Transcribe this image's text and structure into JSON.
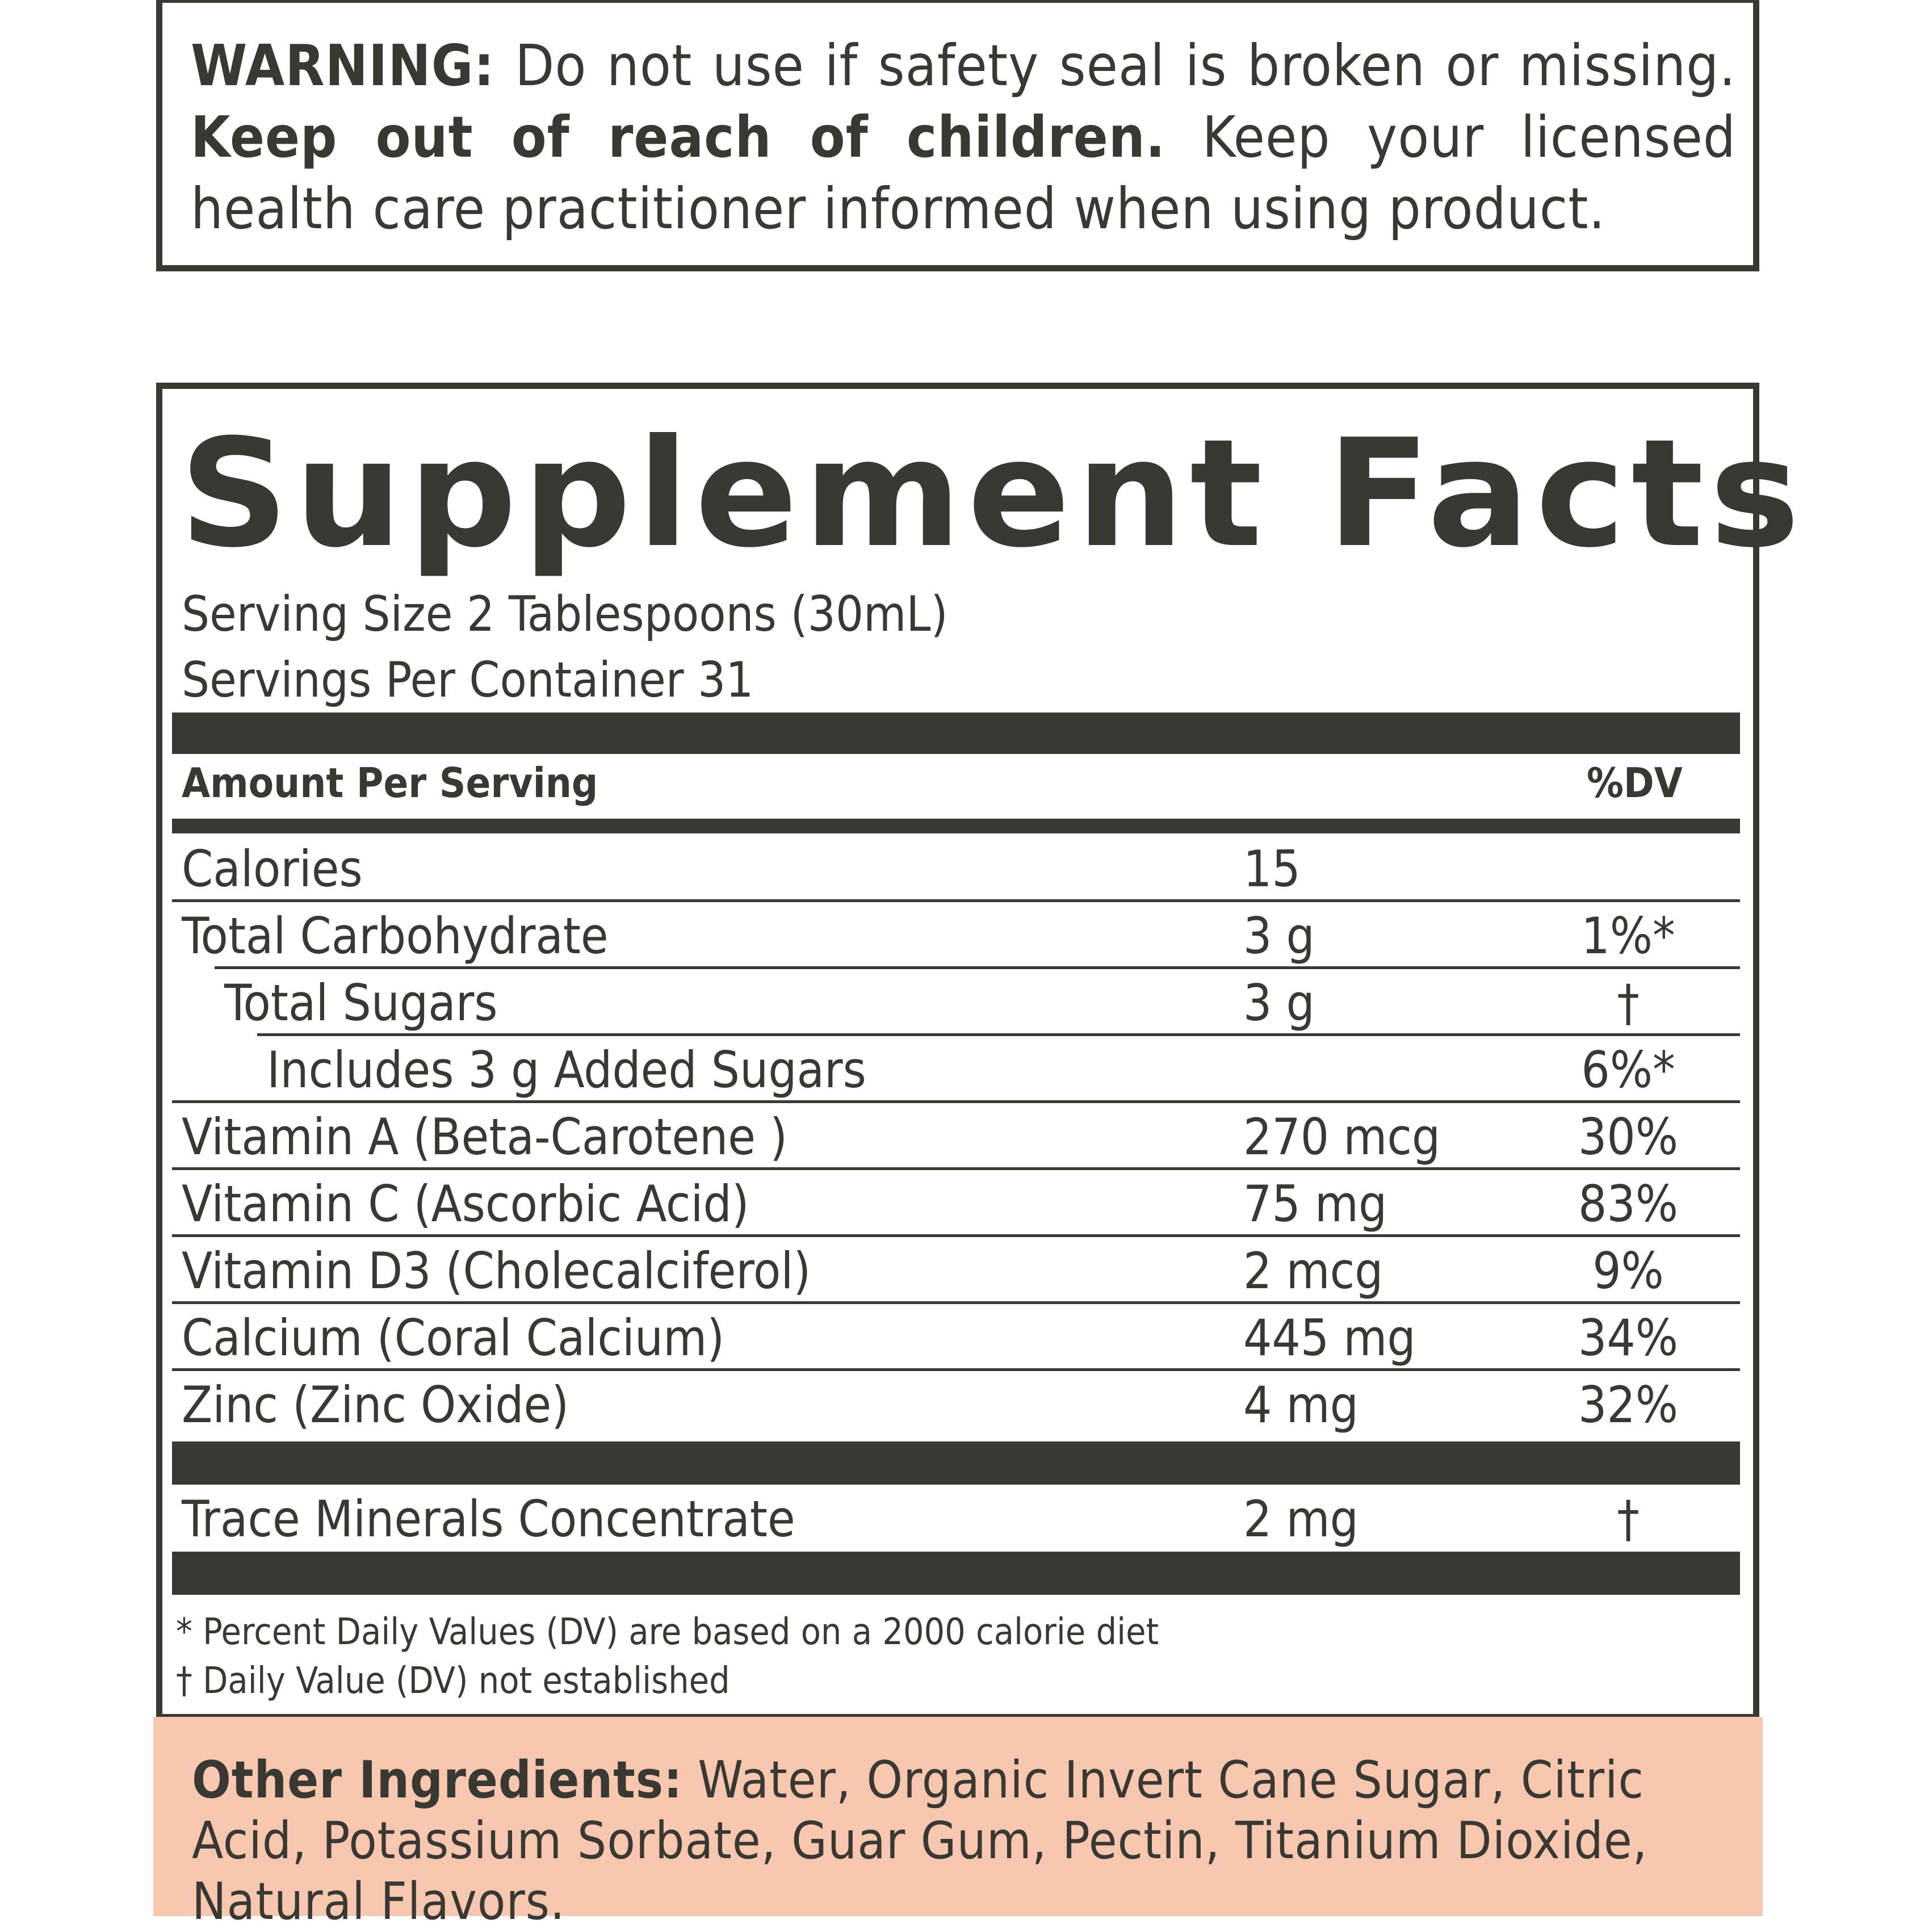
{
  "warning": {
    "label": "WARNING:",
    "text1": " Do not use if safety seal is broken or missing. ",
    "bold2": "Keep out of reach of children.",
    "text2": " Keep your licensed health care practitioner informed when using product."
  },
  "facts": {
    "title": "Supplement Facts",
    "serving_size": "Serving Size 2 Tablespoons (30mL)",
    "servings_per_container": "Servings Per Container 31",
    "amount_header": "Amount Per Serving",
    "dv_header": "%DV",
    "rows": [
      {
        "name": "Calories",
        "amount": "15",
        "dv": "",
        "indent": 0
      },
      {
        "name": "Total Carbohydrate",
        "amount": "3 g",
        "dv": "1%*",
        "indent": 0
      },
      {
        "name": "Total Sugars",
        "amount": "3 g",
        "dv": "†",
        "indent": 1
      },
      {
        "name": "Includes 3 g Added Sugars",
        "amount": "",
        "dv": "6%*",
        "indent": 2
      },
      {
        "name": "Vitamin A (Beta-Carotene )",
        "amount": "270 mcg",
        "dv": "30%",
        "indent": 0
      },
      {
        "name": "Vitamin C (Ascorbic Acid)",
        "amount": "75 mg",
        "dv": "83%",
        "indent": 0
      },
      {
        "name": "Vitamin D3 (Cholecalciferol)",
        "amount": "2 mcg",
        "dv": "9%",
        "indent": 0
      },
      {
        "name": "Calcium (Coral Calcium)",
        "amount": "445 mg",
        "dv": "34%",
        "indent": 0
      },
      {
        "name": "Zinc (Zinc Oxide)",
        "amount": "4 mg",
        "dv": "32%",
        "indent": 0
      }
    ],
    "trace": {
      "name": "Trace Minerals Concentrate",
      "amount": "2 mg",
      "dv": "†"
    },
    "footnote1": "* Percent Daily Values (DV) are based on a 2000 calorie diet",
    "footnote2": "† Daily Value (DV) not established"
  },
  "other_ingredients": {
    "label": "Other Ingredients:",
    "text": " Water, Organic Invert Cane Sugar, Citric Acid, Potassium Sorbate, Guar Gum, Pectin, Titanium Dioxide, Natural Flavors."
  },
  "colors": {
    "ink": "#393833",
    "peach": "#f7c7b0"
  }
}
